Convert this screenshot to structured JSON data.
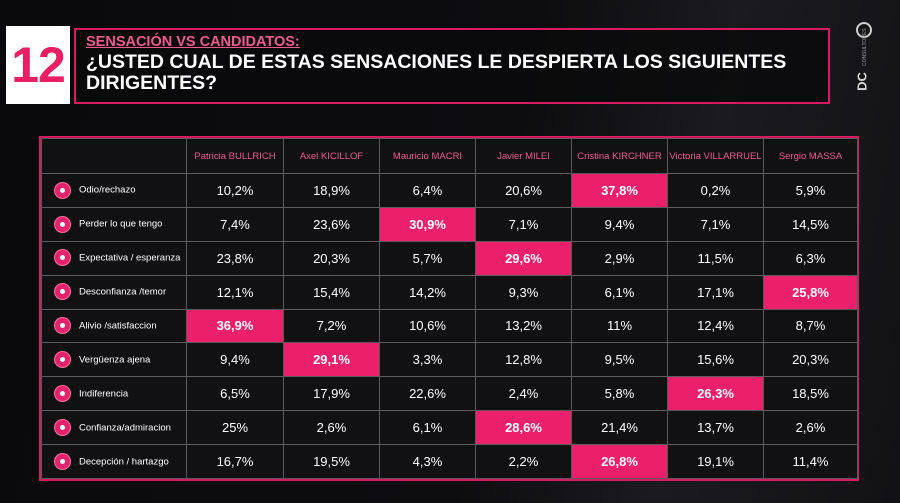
{
  "badge": {
    "number": "12"
  },
  "header": {
    "subtitle": "SENSACIÓN VS CANDIDATOS:",
    "title": "¿USTED CUAL DE ESTAS SENSACIONES LE DESPIERTA LOS SIGUIENTES DIRIGENTES?"
  },
  "logo": {
    "text": "DC",
    "subtext": "CONSULTORES"
  },
  "colors": {
    "accent": "#e91e63",
    "highlight": "#ec1f6a",
    "background": "#0b0b0d"
  },
  "chart_data": {
    "type": "table",
    "columns": [
      "Patricia BULLRICH",
      "Axel KICILLOF",
      "Mauricio MACRI",
      "Javier MILEI",
      "Cristina KIRCHNER",
      "Victoria VILLARRUEL",
      "Sergio MASSA"
    ],
    "rows": [
      {
        "label": "Odio/rechazo",
        "icon": "angry-face-icon",
        "values": [
          "10,2%",
          "18,9%",
          "6,4%",
          "20,6%",
          "37,8%",
          "0,2%",
          "5,9%"
        ],
        "highlight": 4
      },
      {
        "label": "Perder lo que tengo",
        "icon": "sad-face-icon",
        "values": [
          "7,4%",
          "23,6%",
          "30,9%",
          "7,1%",
          "9,4%",
          "7,1%",
          "14,5%"
        ],
        "highlight": 2
      },
      {
        "label": "Expectativa / esperanza",
        "icon": "star-icon",
        "values": [
          "23,8%",
          "20,3%",
          "5,7%",
          "29,6%",
          "2,9%",
          "11,5%",
          "6,3%"
        ],
        "highlight": 3
      },
      {
        "label": "Desconfianza /temor",
        "icon": "worried-face-icon",
        "values": [
          "12,1%",
          "15,4%",
          "14,2%",
          "9,3%",
          "6,1%",
          "17,1%",
          "25,8%"
        ],
        "highlight": 6
      },
      {
        "label": "Alivio /satisfaccion",
        "icon": "smile-face-icon",
        "values": [
          "36,9%",
          "7,2%",
          "10,6%",
          "13,2%",
          "11%",
          "12,4%",
          "8,7%"
        ],
        "highlight": 0
      },
      {
        "label": "Vergüenza ajena",
        "icon": "embarrassed-face-icon",
        "values": [
          "9,4%",
          "29,1%",
          "3,3%",
          "12,8%",
          "9,5%",
          "15,6%",
          "20,3%"
        ],
        "highlight": 1
      },
      {
        "label": "Indiferencia",
        "icon": "neutral-face-icon",
        "values": [
          "6,5%",
          "17,9%",
          "22,6%",
          "2,4%",
          "5,8%",
          "26,3%",
          "18,5%"
        ],
        "highlight": 5
      },
      {
        "label": "Confianza/admiracion",
        "icon": "thumbs-up-icon",
        "values": [
          "25%",
          "2,6%",
          "6,1%",
          "28,6%",
          "21,4%",
          "13,7%",
          "2,6%"
        ],
        "highlight": 3
      },
      {
        "label": "Decepción / hartazgo",
        "icon": "broken-heart-icon",
        "values": [
          "16,7%",
          "19,5%",
          "4,3%",
          "2,2%",
          "26,8%",
          "19,1%",
          "11,4%"
        ],
        "highlight": 4
      }
    ]
  }
}
